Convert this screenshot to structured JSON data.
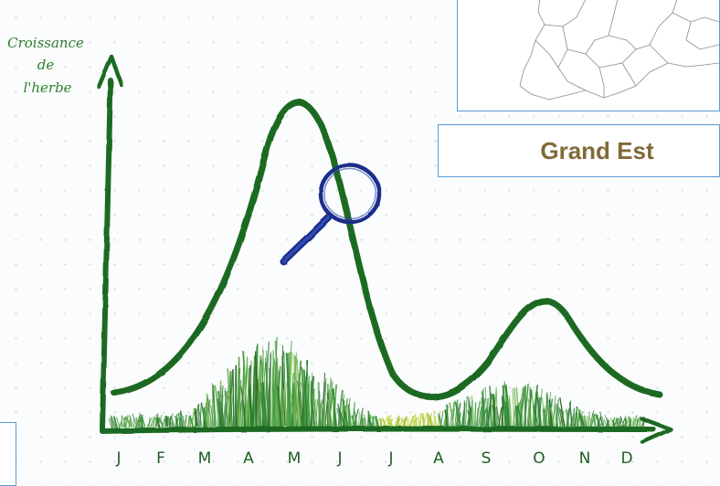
{
  "y_axis_label_lines": [
    "Croissance",
    "de",
    "l'herbe"
  ],
  "months": [
    "J",
    "F",
    "M",
    "A",
    "M",
    "J",
    "J",
    "A",
    "S",
    "O",
    "N",
    "D"
  ],
  "region": {
    "label": "Grand Est"
  },
  "icons": {
    "magnifier": "magnifier-icon",
    "map": "france-map"
  },
  "colors": {
    "curve": "#1e6a24",
    "axis": "#1e6a24",
    "magnifier": "#1d2f8a",
    "region_text": "#806a38",
    "frame": "#5b9bd5"
  }
}
